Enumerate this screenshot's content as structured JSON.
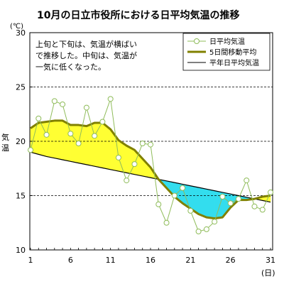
{
  "chart_data": {
    "type": "line",
    "title": "10月の日立市役所における日平均気温の推移",
    "y_unit_label": "(℃)",
    "ylabel": "気温",
    "x_unit_label": "(日)",
    "ylim": [
      10,
      30
    ],
    "xlim": [
      1,
      31
    ],
    "y_ticks": [
      "10",
      "15",
      "20",
      "25",
      "30"
    ],
    "x_ticks": [
      "1",
      "6",
      "11",
      "16",
      "21",
      "26",
      "31"
    ],
    "grid": "dashed horizontal at 15, 20, 25",
    "legend_position": "top-right",
    "annotation": [
      "上旬と下旬は、気温が横ばい",
      "で推移した。中旬は、気温が",
      "一気に低くなった。"
    ],
    "x": [
      1,
      2,
      3,
      4,
      5,
      6,
      7,
      8,
      9,
      10,
      11,
      12,
      13,
      14,
      15,
      16,
      17,
      18,
      19,
      20,
      21,
      22,
      23,
      24,
      25,
      26,
      27,
      28,
      29,
      30,
      31
    ],
    "series": [
      {
        "name": "日平均気温",
        "color": "#8fbc5a",
        "values": [
          19.2,
          22.1,
          20.6,
          23.7,
          23.4,
          20.7,
          19.8,
          23.1,
          20.5,
          21.8,
          23.9,
          18.5,
          16.4,
          17.9,
          19.8,
          19.7,
          14.2,
          12.5,
          15.0,
          15.7,
          13.6,
          11.7,
          11.9,
          12.6,
          14.9,
          14.3,
          14.7,
          16.4,
          14.0,
          13.7,
          15.3
        ]
      },
      {
        "name": "5日間移動平均",
        "color": "#808000",
        "values": [
          21.2,
          21.7,
          21.8,
          21.9,
          21.9,
          21.5,
          21.5,
          21.4,
          21.7,
          21.7,
          21.1,
          20.1,
          19.6,
          19.2,
          18.4,
          17.6,
          16.5,
          15.7,
          14.9,
          14.3,
          13.8,
          13.3,
          13.0,
          12.9,
          13.0,
          13.9,
          14.6,
          14.6,
          14.7,
          14.9,
          15.0
        ]
      },
      {
        "name": "平年日平均気温",
        "color": "#000000",
        "values": [
          19.0,
          18.8,
          18.6,
          18.45,
          18.3,
          18.15,
          18.0,
          17.85,
          17.7,
          17.55,
          17.4,
          17.25,
          17.1,
          16.95,
          16.8,
          16.65,
          16.5,
          16.35,
          16.2,
          16.05,
          15.9,
          15.75,
          15.6,
          15.45,
          15.3,
          15.15,
          15.0,
          14.85,
          14.7,
          14.55,
          14.4
        ]
      }
    ],
    "fill_colors": {
      "above_normal": "#ffff33",
      "below_normal": "#33ddee"
    }
  }
}
